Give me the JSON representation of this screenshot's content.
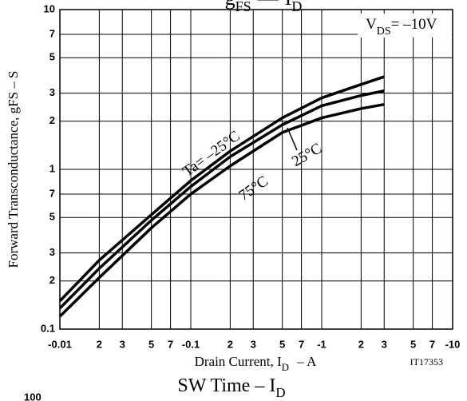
{
  "chart_data": {
    "type": "line",
    "title_main": "g",
    "title_sub": "FS",
    "title_dash": "—",
    "title_var": "I",
    "title_var_sub": "D",
    "x_label": "Drain Current, I",
    "x_label_sub": "D",
    "x_label_unit": " – A",
    "y_label": "Forward Transconductance, gFS – S",
    "condition": "V",
    "condition_sub": "DS",
    "condition_value": "= –10V",
    "code": "IT17353",
    "next_title": "SW Time – ",
    "next_title_var": "I",
    "next_title_sub": "D",
    "next_ytick": "100",
    "log_x": true,
    "log_y": true,
    "grid": true,
    "xlim": [
      -0.01,
      -10
    ],
    "xticks": [
      -0.01,
      {
        "value": -0.02,
        "label": "2"
      },
      {
        "value": -0.03,
        "label": "3"
      },
      {
        "value": -0.05,
        "label": "5"
      },
      {
        "value": -0.07,
        "label": "7"
      },
      -0.1,
      {
        "value": -0.2,
        "label": "2"
      },
      {
        "value": -0.3,
        "label": "3"
      },
      {
        "value": -0.5,
        "label": "5"
      },
      {
        "value": -0.7,
        "label": "7"
      },
      -1,
      {
        "value": -2,
        "label": "2"
      },
      {
        "value": -3,
        "label": "3"
      },
      {
        "value": -5,
        "label": "5"
      },
      {
        "value": -7,
        "label": "7"
      },
      -10
    ],
    "ylim": [
      0.1,
      10
    ],
    "yticks": [
      0.1,
      {
        "value": 0.2,
        "label": "2"
      },
      {
        "value": 0.3,
        "label": "3"
      },
      {
        "value": 0.5,
        "label": "5"
      },
      {
        "value": 0.7,
        "label": "7"
      },
      1,
      2,
      3,
      5,
      7,
      10
    ],
    "x": [
      -0.01,
      -0.02,
      -0.05,
      -0.1,
      -0.2,
      -0.5,
      -1,
      -2,
      -3
    ],
    "series": [
      {
        "name": "Ta= –25°C",
        "color": "#000000",
        "values": [
          0.15,
          0.27,
          0.52,
          0.85,
          1.3,
          2.1,
          2.8,
          3.4,
          3.8
        ]
      },
      {
        "name": "25°C",
        "color": "#000000",
        "values": [
          0.135,
          0.24,
          0.48,
          0.78,
          1.2,
          1.9,
          2.5,
          2.9,
          3.1
        ]
      },
      {
        "name": "75°C",
        "color": "#000000",
        "values": [
          0.12,
          0.21,
          0.43,
          0.7,
          1.05,
          1.7,
          2.1,
          2.4,
          2.55
        ]
      }
    ]
  }
}
